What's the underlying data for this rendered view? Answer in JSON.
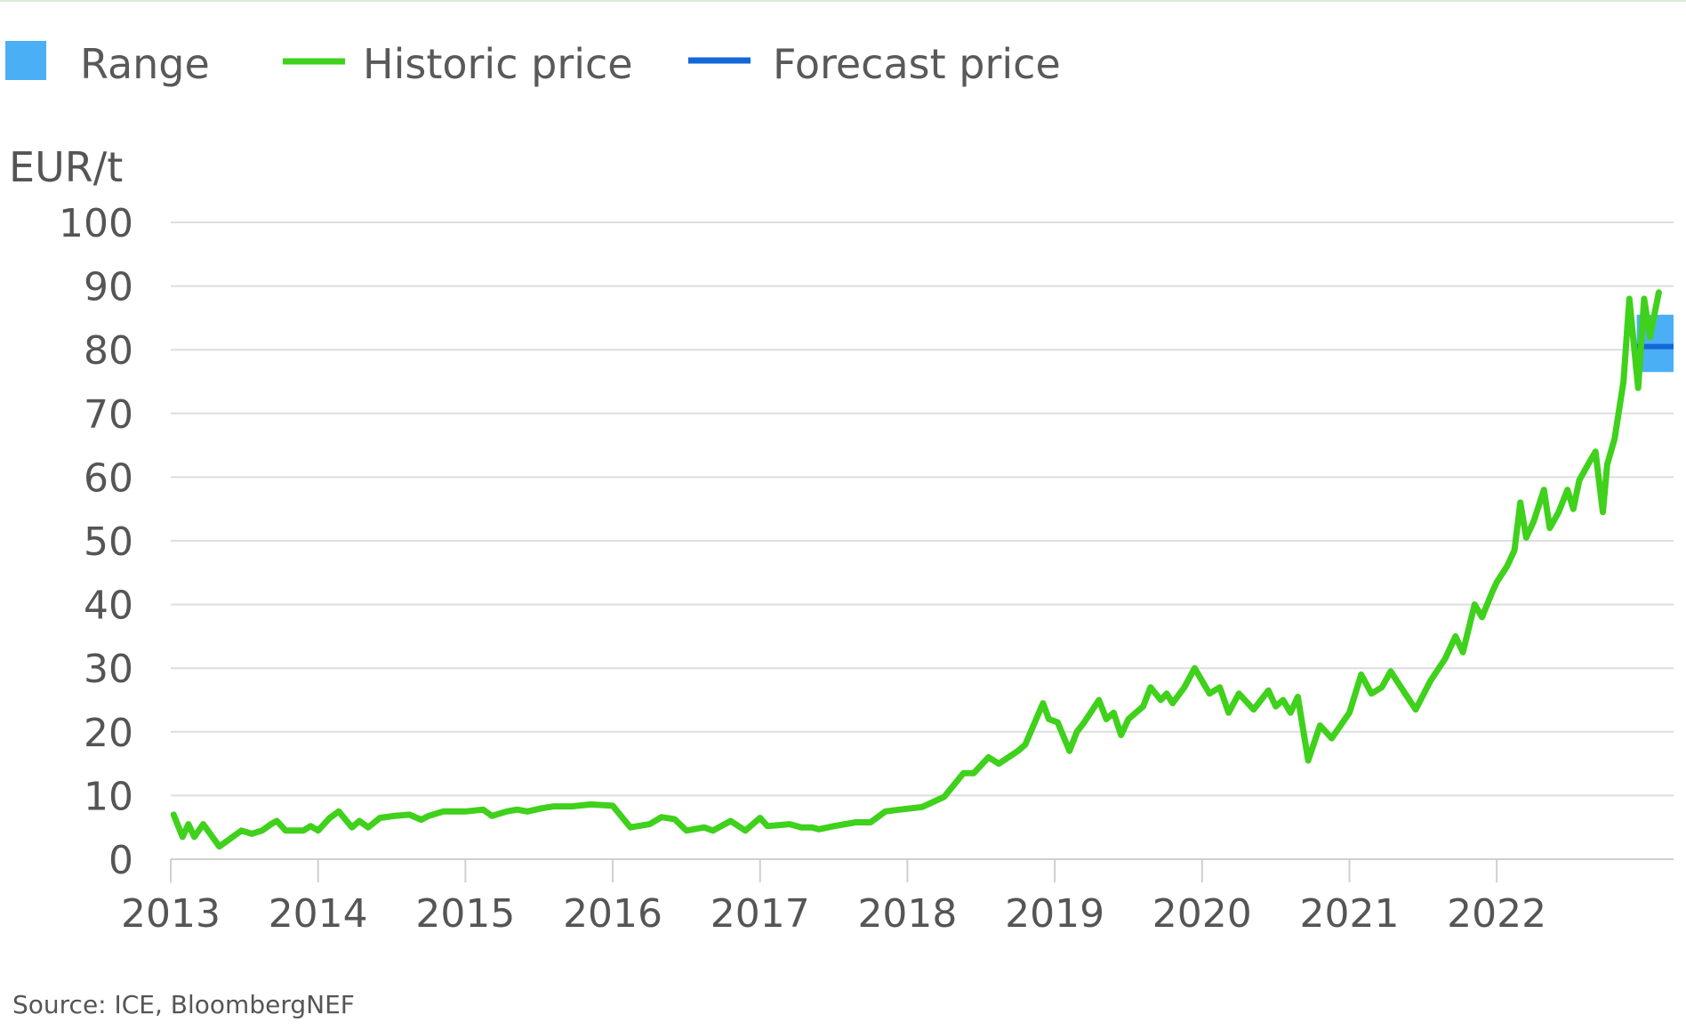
{
  "chart_data": {
    "type": "line",
    "ylabel": "EUR/t",
    "source": "Source: ICE, BloombergNEF",
    "ylim": [
      0,
      100
    ],
    "yticks": [
      0,
      10,
      20,
      30,
      40,
      50,
      60,
      70,
      80,
      90,
      100
    ],
    "yticks_text": [
      "0",
      "10",
      "20",
      "30",
      "40",
      "50",
      "60",
      "70",
      "80",
      "90",
      "100"
    ],
    "xlim": [
      2013,
      2023.2
    ],
    "xticks": [
      2013,
      2014,
      2015,
      2016,
      2017,
      2018,
      2019,
      2020,
      2021,
      2022
    ],
    "xticks_text": [
      "2013",
      "2014",
      "2015",
      "2016",
      "2017",
      "2018",
      "2019",
      "2020",
      "2021",
      "2022"
    ],
    "grid": true,
    "legend": {
      "position": "top-left",
      "items": [
        {
          "label": "Range",
          "kind": "area",
          "color": "#4aaff5"
        },
        {
          "label": "Historic price",
          "kind": "line",
          "color": "#3fd11b"
        },
        {
          "label": "Forecast price",
          "kind": "line",
          "color": "#1268d8"
        }
      ]
    },
    "series": [
      {
        "name": "Historic price",
        "color": "#3fd11b",
        "points": [
          [
            2013.02,
            7
          ],
          [
            2013.08,
            3.5
          ],
          [
            2013.12,
            5.5
          ],
          [
            2013.16,
            3.5
          ],
          [
            2013.22,
            5.5
          ],
          [
            2013.33,
            2
          ],
          [
            2013.42,
            3.5
          ],
          [
            2013.48,
            4.5
          ],
          [
            2013.55,
            4
          ],
          [
            2013.62,
            4.5
          ],
          [
            2013.68,
            5.5
          ],
          [
            2013.72,
            6
          ],
          [
            2013.78,
            4.5
          ],
          [
            2013.9,
            4.5
          ],
          [
            2013.95,
            5.2
          ],
          [
            2014.0,
            4.5
          ],
          [
            2014.08,
            6.5
          ],
          [
            2014.14,
            7.5
          ],
          [
            2014.23,
            5
          ],
          [
            2014.28,
            6
          ],
          [
            2014.34,
            5
          ],
          [
            2014.42,
            6.5
          ],
          [
            2014.52,
            6.8
          ],
          [
            2014.62,
            7
          ],
          [
            2014.7,
            6.2
          ],
          [
            2014.75,
            6.8
          ],
          [
            2014.85,
            7.5
          ],
          [
            2015.0,
            7.5
          ],
          [
            2015.12,
            7.8
          ],
          [
            2015.18,
            6.8
          ],
          [
            2015.28,
            7.5
          ],
          [
            2015.35,
            7.8
          ],
          [
            2015.42,
            7.5
          ],
          [
            2015.52,
            8
          ],
          [
            2015.6,
            8.3
          ],
          [
            2015.72,
            8.3
          ],
          [
            2015.85,
            8.6
          ],
          [
            2016.0,
            8.4
          ],
          [
            2016.12,
            5
          ],
          [
            2016.25,
            5.5
          ],
          [
            2016.33,
            6.6
          ],
          [
            2016.42,
            6.3
          ],
          [
            2016.5,
            4.5
          ],
          [
            2016.62,
            5
          ],
          [
            2016.68,
            4.5
          ],
          [
            2016.8,
            6
          ],
          [
            2016.9,
            4.5
          ],
          [
            2017.0,
            6.5
          ],
          [
            2017.05,
            5.2
          ],
          [
            2017.2,
            5.5
          ],
          [
            2017.28,
            5
          ],
          [
            2017.35,
            5
          ],
          [
            2017.4,
            4.7
          ],
          [
            2017.5,
            5.2
          ],
          [
            2017.65,
            5.8
          ],
          [
            2017.75,
            5.8
          ],
          [
            2017.85,
            7.5
          ],
          [
            2017.95,
            7.8
          ],
          [
            2018.1,
            8.2
          ],
          [
            2018.25,
            9.8
          ],
          [
            2018.38,
            13.5
          ],
          [
            2018.45,
            13.5
          ],
          [
            2018.55,
            16
          ],
          [
            2018.62,
            15
          ],
          [
            2018.75,
            17
          ],
          [
            2018.8,
            18
          ],
          [
            2018.92,
            24.5
          ],
          [
            2018.96,
            22
          ],
          [
            2019.02,
            21.5
          ],
          [
            2019.1,
            17
          ],
          [
            2019.15,
            20
          ],
          [
            2019.2,
            21.5
          ],
          [
            2019.3,
            25
          ],
          [
            2019.35,
            22
          ],
          [
            2019.4,
            23
          ],
          [
            2019.45,
            19.5
          ],
          [
            2019.5,
            22
          ],
          [
            2019.6,
            24
          ],
          [
            2019.65,
            27
          ],
          [
            2019.72,
            25
          ],
          [
            2019.76,
            26
          ],
          [
            2019.8,
            24.5
          ],
          [
            2019.88,
            27
          ],
          [
            2019.95,
            30
          ],
          [
            2020.05,
            26
          ],
          [
            2020.12,
            27
          ],
          [
            2020.18,
            23
          ],
          [
            2020.25,
            26
          ],
          [
            2020.35,
            23.5
          ],
          [
            2020.45,
            26.5
          ],
          [
            2020.5,
            24
          ],
          [
            2020.55,
            25
          ],
          [
            2020.6,
            23
          ],
          [
            2020.65,
            25.5
          ],
          [
            2020.72,
            15.5
          ],
          [
            2020.8,
            21
          ],
          [
            2020.88,
            19
          ],
          [
            2021.0,
            23
          ],
          [
            2021.08,
            29
          ],
          [
            2021.15,
            26
          ],
          [
            2021.22,
            27
          ],
          [
            2021.28,
            29.5
          ],
          [
            2021.35,
            27
          ],
          [
            2021.45,
            23.5
          ],
          [
            2021.55,
            28
          ],
          [
            2021.65,
            31.5
          ],
          [
            2021.72,
            35
          ],
          [
            2021.77,
            32.5
          ],
          [
            2021.85,
            40
          ],
          [
            2021.9,
            38
          ],
          [
            2021.97,
            42
          ],
          [
            2022.0,
            43.5
          ],
          [
            2022.07,
            46
          ],
          [
            2022.12,
            48.5
          ],
          [
            2022.16,
            56
          ],
          [
            2022.2,
            50.5
          ],
          [
            2022.25,
            53
          ],
          [
            2022.32,
            58
          ],
          [
            2022.36,
            52
          ],
          [
            2022.42,
            54.5
          ],
          [
            2022.48,
            58
          ],
          [
            2022.52,
            55
          ],
          [
            2022.56,
            59.5
          ],
          [
            2022.62,
            62
          ],
          [
            2022.67,
            64
          ],
          [
            2022.72,
            54.5
          ],
          [
            2022.75,
            62
          ],
          [
            2022.8,
            66
          ],
          [
            2022.86,
            75
          ],
          [
            2022.9,
            88
          ],
          [
            2022.96,
            74
          ],
          [
            2023.0,
            88
          ],
          [
            2023.04,
            82
          ],
          [
            2023.1,
            89
          ]
        ]
      },
      {
        "name": "Forecast price",
        "color": "#1268d8",
        "points": [
          [
            2022.95,
            80.5
          ],
          [
            2023.2,
            80.5
          ]
        ]
      }
    ],
    "range": {
      "name": "Range",
      "color": "#4aaff5",
      "x": [
        2022.95,
        2023.2
      ],
      "low": 76.5,
      "high": 85.5
    }
  }
}
